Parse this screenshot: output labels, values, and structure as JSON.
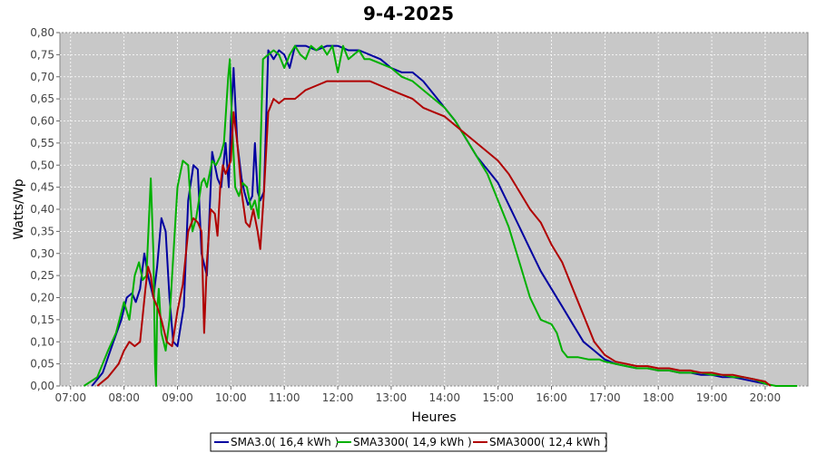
{
  "chart_data": {
    "type": "line",
    "title": "9-4-2025",
    "xlabel": "Heures",
    "ylabel": "Watts/Wp",
    "xlim": [
      6.8,
      20.8
    ],
    "ylim": [
      0,
      0.8
    ],
    "x_ticks": [
      "07:00",
      "08:00",
      "09:00",
      "10:00",
      "11:00",
      "12:00",
      "13:00",
      "14:00",
      "15:00",
      "16:00",
      "17:00",
      "18:00",
      "19:00",
      "20:00"
    ],
    "y_ticks": [
      "0,00",
      "0,05",
      "0,10",
      "0,15",
      "0,20",
      "0,25",
      "0,30",
      "0,35",
      "0,40",
      "0,45",
      "0,50",
      "0,55",
      "0,60",
      "0,65",
      "0,70",
      "0,75",
      "0,80"
    ],
    "background": "#c8c8c8",
    "grid": true,
    "legend_position": "bottom",
    "series": [
      {
        "name": "SMA3.0( 16,4 kWh )",
        "color": "#0000a0",
        "x": [
          7.4,
          7.6,
          7.8,
          7.95,
          8.05,
          8.15,
          8.22,
          8.3,
          8.38,
          8.45,
          8.55,
          8.62,
          8.7,
          8.78,
          8.85,
          8.92,
          9.0,
          9.12,
          9.2,
          9.3,
          9.38,
          9.45,
          9.55,
          9.65,
          9.75,
          9.82,
          9.9,
          9.96,
          10.0,
          10.05,
          10.12,
          10.2,
          10.25,
          10.32,
          10.4,
          10.45,
          10.5,
          10.55,
          10.62,
          10.7,
          10.8,
          10.9,
          11.0,
          11.1,
          11.2,
          11.4,
          11.6,
          11.8,
          12.0,
          12.2,
          12.4,
          12.6,
          12.8,
          13.0,
          13.2,
          13.4,
          13.6,
          13.8,
          14.0,
          14.2,
          14.4,
          14.6,
          14.8,
          15.0,
          15.2,
          15.4,
          15.6,
          15.8,
          16.0,
          16.2,
          16.4,
          16.6,
          16.8,
          17.0,
          17.2,
          17.4,
          17.6,
          17.8,
          18.0,
          18.2,
          18.4,
          18.6,
          18.8,
          19.0,
          19.2,
          19.4,
          19.6,
          19.8,
          20.0
        ],
        "values": [
          0.0,
          0.03,
          0.1,
          0.15,
          0.2,
          0.21,
          0.19,
          0.22,
          0.3,
          0.25,
          0.2,
          0.27,
          0.38,
          0.35,
          0.2,
          0.1,
          0.09,
          0.18,
          0.42,
          0.5,
          0.49,
          0.3,
          0.25,
          0.53,
          0.47,
          0.45,
          0.55,
          0.45,
          0.6,
          0.72,
          0.55,
          0.47,
          0.44,
          0.41,
          0.43,
          0.55,
          0.44,
          0.42,
          0.44,
          0.76,
          0.74,
          0.76,
          0.75,
          0.72,
          0.77,
          0.77,
          0.76,
          0.77,
          0.77,
          0.76,
          0.76,
          0.75,
          0.74,
          0.72,
          0.71,
          0.71,
          0.69,
          0.66,
          0.63,
          0.6,
          0.56,
          0.52,
          0.49,
          0.46,
          0.41,
          0.36,
          0.31,
          0.26,
          0.22,
          0.18,
          0.14,
          0.1,
          0.08,
          0.06,
          0.05,
          0.045,
          0.04,
          0.04,
          0.035,
          0.035,
          0.03,
          0.03,
          0.025,
          0.025,
          0.02,
          0.02,
          0.015,
          0.01,
          0.005
        ]
      },
      {
        "name": "SMA3300( 14,9 kWh )",
        "color": "#00b000",
        "x": [
          7.25,
          7.5,
          7.7,
          7.85,
          8.0,
          8.1,
          8.2,
          8.28,
          8.35,
          8.42,
          8.5,
          8.55,
          8.58,
          8.6,
          8.62,
          8.65,
          8.7,
          8.78,
          8.85,
          8.9,
          9.0,
          9.1,
          9.2,
          9.28,
          9.35,
          9.45,
          9.5,
          9.55,
          9.65,
          9.72,
          9.8,
          9.87,
          9.95,
          9.98,
          10.02,
          10.08,
          10.15,
          10.22,
          10.3,
          10.38,
          10.45,
          10.52,
          10.6,
          10.7,
          10.8,
          10.9,
          11.0,
          11.1,
          11.2,
          11.3,
          11.4,
          11.5,
          11.6,
          11.7,
          11.8,
          11.9,
          12.0,
          12.1,
          12.2,
          12.3,
          12.4,
          12.5,
          12.6,
          12.8,
          13.0,
          13.2,
          13.4,
          13.6,
          13.8,
          14.0,
          14.2,
          14.4,
          14.6,
          14.8,
          15.0,
          15.2,
          15.4,
          15.6,
          15.8,
          16.0,
          16.1,
          16.2,
          16.3,
          16.5,
          16.7,
          16.9,
          17.0,
          17.2,
          17.4,
          17.6,
          17.8,
          18.0,
          18.2,
          18.4,
          18.6,
          18.8,
          19.0,
          19.2,
          19.4,
          19.6,
          19.8,
          20.0,
          20.2,
          20.6
        ],
        "values": [
          0.0,
          0.02,
          0.08,
          0.12,
          0.19,
          0.15,
          0.25,
          0.28,
          0.24,
          0.25,
          0.47,
          0.3,
          0.05,
          0.0,
          0.17,
          0.22,
          0.12,
          0.08,
          0.15,
          0.25,
          0.45,
          0.51,
          0.5,
          0.35,
          0.38,
          0.46,
          0.47,
          0.45,
          0.51,
          0.5,
          0.52,
          0.55,
          0.7,
          0.74,
          0.6,
          0.45,
          0.43,
          0.46,
          0.45,
          0.4,
          0.42,
          0.38,
          0.74,
          0.75,
          0.76,
          0.75,
          0.72,
          0.75,
          0.77,
          0.75,
          0.74,
          0.77,
          0.76,
          0.77,
          0.75,
          0.77,
          0.71,
          0.77,
          0.74,
          0.75,
          0.76,
          0.74,
          0.74,
          0.73,
          0.72,
          0.7,
          0.69,
          0.67,
          0.65,
          0.63,
          0.6,
          0.56,
          0.52,
          0.48,
          0.42,
          0.36,
          0.28,
          0.2,
          0.15,
          0.14,
          0.12,
          0.08,
          0.065,
          0.065,
          0.06,
          0.06,
          0.055,
          0.05,
          0.045,
          0.04,
          0.04,
          0.035,
          0.035,
          0.03,
          0.03,
          0.03,
          0.025,
          0.025,
          0.02,
          0.02,
          0.015,
          0.005,
          0.0,
          0.0
        ]
      },
      {
        "name": "SMA3000( 12,4 kWh )",
        "color": "#b00000",
        "x": [
          7.5,
          7.7,
          7.9,
          8.0,
          8.1,
          8.2,
          8.3,
          8.4,
          8.45,
          8.5,
          8.55,
          8.62,
          8.7,
          8.8,
          8.9,
          9.0,
          9.1,
          9.2,
          9.3,
          9.38,
          9.45,
          9.5,
          9.55,
          9.62,
          9.7,
          9.75,
          9.8,
          9.85,
          9.9,
          10.0,
          10.05,
          10.12,
          10.2,
          10.28,
          10.35,
          10.42,
          10.5,
          10.55,
          10.62,
          10.7,
          10.8,
          10.9,
          11.0,
          11.2,
          11.4,
          11.6,
          11.8,
          12.0,
          12.2,
          12.4,
          12.6,
          12.8,
          13.0,
          13.2,
          13.4,
          13.6,
          13.8,
          14.0,
          14.2,
          14.4,
          14.6,
          14.8,
          15.0,
          15.2,
          15.4,
          15.6,
          15.8,
          16.0,
          16.2,
          16.4,
          16.6,
          16.8,
          17.0,
          17.2,
          17.4,
          17.6,
          17.8,
          18.0,
          18.2,
          18.4,
          18.6,
          18.8,
          19.0,
          19.2,
          19.4,
          19.6,
          19.8,
          20.0,
          20.1
        ],
        "values": [
          0.0,
          0.02,
          0.05,
          0.08,
          0.1,
          0.09,
          0.1,
          0.22,
          0.27,
          0.25,
          0.2,
          0.18,
          0.15,
          0.1,
          0.09,
          0.17,
          0.23,
          0.35,
          0.38,
          0.37,
          0.35,
          0.12,
          0.28,
          0.4,
          0.39,
          0.34,
          0.45,
          0.5,
          0.48,
          0.51,
          0.62,
          0.55,
          0.44,
          0.37,
          0.36,
          0.4,
          0.35,
          0.31,
          0.44,
          0.62,
          0.65,
          0.64,
          0.65,
          0.65,
          0.67,
          0.68,
          0.69,
          0.69,
          0.69,
          0.69,
          0.69,
          0.68,
          0.67,
          0.66,
          0.65,
          0.63,
          0.62,
          0.61,
          0.59,
          0.57,
          0.55,
          0.53,
          0.51,
          0.48,
          0.44,
          0.4,
          0.37,
          0.32,
          0.28,
          0.22,
          0.16,
          0.1,
          0.07,
          0.055,
          0.05,
          0.045,
          0.045,
          0.04,
          0.04,
          0.035,
          0.035,
          0.03,
          0.03,
          0.025,
          0.025,
          0.02,
          0.015,
          0.01,
          0.0
        ]
      }
    ]
  }
}
